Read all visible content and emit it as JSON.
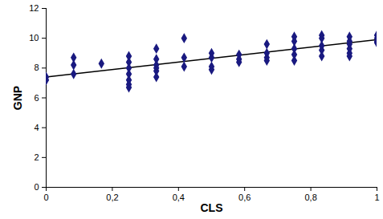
{
  "chart_data": {
    "type": "scatter",
    "x_label": "CLS",
    "y_label": "GNP",
    "marker": "diamond",
    "color": "#1a1a80",
    "x": [
      0,
      0,
      0.083,
      0.083,
      0.083,
      0.167,
      0.25,
      0.25,
      0.25,
      0.25,
      0.25,
      0.25,
      0.25,
      0.333,
      0.333,
      0.333,
      0.333,
      0.333,
      0.333,
      0.417,
      0.417,
      0.417,
      0.5,
      0.5,
      0.5,
      0.5,
      0.583,
      0.583,
      0.583,
      0.667,
      0.667,
      0.667,
      0.667,
      0.75,
      0.75,
      0.75,
      0.75,
      0.75,
      0.833,
      0.833,
      0.833,
      0.833,
      0.833,
      0.917,
      0.917,
      0.917,
      0.917,
      0.917,
      0.917,
      1,
      1,
      1,
      1
    ],
    "values": [
      7.4,
      7.2,
      8.7,
      8.2,
      7.6,
      8.3,
      8.8,
      8.4,
      8.0,
      7.6,
      7.2,
      6.9,
      6.7,
      9.3,
      8.6,
      8.2,
      8.0,
      7.8,
      7.4,
      10.0,
      8.7,
      8.1,
      9.0,
      8.7,
      8.1,
      7.9,
      8.9,
      8.6,
      8.4,
      9.6,
      9.0,
      8.7,
      8.5,
      10.1,
      9.8,
      9.3,
      8.9,
      8.5,
      10.2,
      10.0,
      9.5,
      9.2,
      8.8,
      10.1,
      9.8,
      9.6,
      9.3,
      9.0,
      8.8,
      10.2,
      10.0,
      9.8,
      9.7
    ],
    "trend_line": {
      "x": [
        0,
        1
      ],
      "values": [
        7.4,
        9.9
      ],
      "color": "#000000"
    },
    "xlim": [
      0,
      1
    ],
    "xticks": [
      0,
      {
        "value": 0.2,
        "label": "0,2"
      },
      {
        "value": 0.4,
        "label": "0,4"
      },
      {
        "value": 0.6,
        "label": "0,6"
      },
      {
        "value": 0.8,
        "label": "0,8"
      },
      1
    ],
    "ylim": [
      0,
      12
    ],
    "yticks": [
      0,
      2,
      4,
      6,
      8,
      10,
      12
    ],
    "grid": false
  }
}
